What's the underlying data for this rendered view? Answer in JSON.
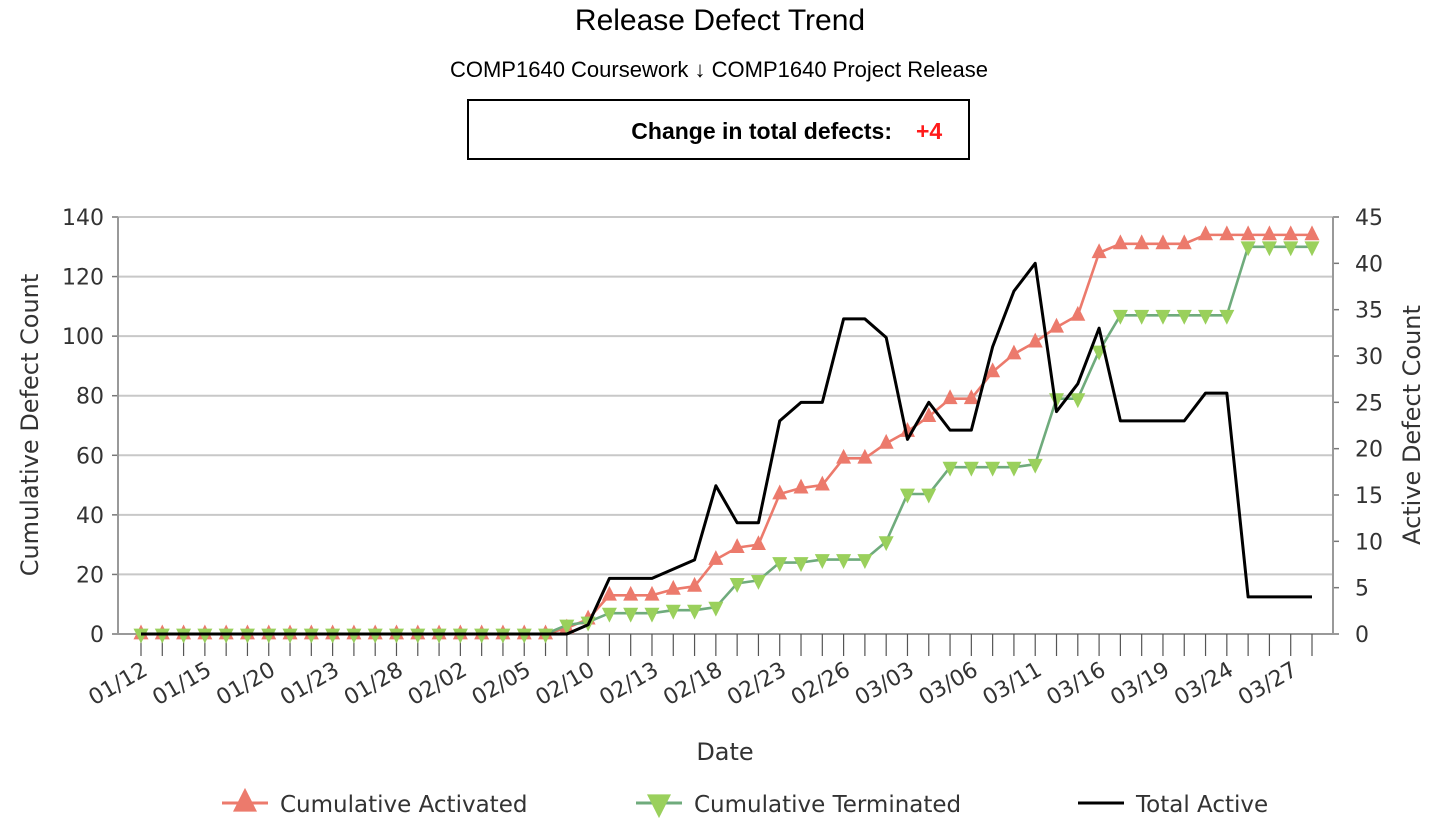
{
  "header": {
    "title": "Release Defect Trend",
    "subtitle": "COMP1640 Coursework ↓ COMP1640 Project Release",
    "change_label": "Change in total defects:",
    "change_value": "+4"
  },
  "chart_data": {
    "type": "line",
    "title": "Release Defect Trend",
    "subtitle": "COMP1640 Coursework ↓ COMP1640 Project Release",
    "xlabel": "Date",
    "ylabel": "Cumulative Defect Count",
    "ylabel_right": "Active Defect Count",
    "ylim": [
      0,
      140
    ],
    "ylim_right": [
      0,
      45
    ],
    "yticks": [
      0,
      20,
      40,
      60,
      80,
      100,
      120,
      140
    ],
    "yticks_right": [
      0,
      5,
      10,
      15,
      20,
      25,
      30,
      35,
      40,
      45
    ],
    "grid": true,
    "legend_position": "bottom",
    "x_tick_labels": [
      "01/12",
      "01/15",
      "01/20",
      "01/23",
      "01/28",
      "02/02",
      "02/05",
      "02/10",
      "02/13",
      "02/18",
      "02/23",
      "02/26",
      "03/03",
      "03/06",
      "03/11",
      "03/16",
      "03/19",
      "03/24",
      "03/27"
    ],
    "x_tick_every": 3,
    "point_count": 56,
    "series": [
      {
        "name": "Cumulative Activated",
        "axis": "left",
        "color": "#ec7a6c",
        "marker": "triangle-up",
        "values": [
          0,
          0,
          0,
          0,
          0,
          0,
          0,
          0,
          0,
          0,
          0,
          0,
          0,
          0,
          0,
          0,
          0,
          0,
          0,
          0,
          2,
          5,
          13,
          13,
          13,
          15,
          16,
          25,
          29,
          30,
          47,
          49,
          50,
          59,
          59,
          64,
          68,
          73,
          79,
          79,
          88,
          94,
          98,
          103,
          107,
          128,
          131,
          131,
          131,
          131,
          134,
          134,
          134,
          134,
          134,
          134
        ]
      },
      {
        "name": "Cumulative Terminated",
        "axis": "left",
        "color": "#6fab7c",
        "marker_color": "#9ad05c",
        "marker": "triangle-down",
        "values": [
          0,
          0,
          0,
          0,
          0,
          0,
          0,
          0,
          0,
          0,
          0,
          0,
          0,
          0,
          0,
          0,
          0,
          0,
          0,
          0,
          3,
          4,
          7,
          7,
          7,
          8,
          8,
          9,
          17,
          18,
          24,
          24,
          25,
          25,
          25,
          31,
          47,
          47,
          56,
          56,
          56,
          56,
          57,
          79,
          79,
          95,
          107,
          107,
          107,
          107,
          107,
          107,
          130,
          130,
          130,
          130
        ]
      },
      {
        "name": "Total Active",
        "axis": "right",
        "color": "#000000",
        "marker": "none",
        "values": [
          0,
          0,
          0,
          0,
          0,
          0,
          0,
          0,
          0,
          0,
          0,
          0,
          0,
          0,
          0,
          0,
          0,
          0,
          0,
          0,
          0,
          1,
          6,
          6,
          6,
          7,
          8,
          16,
          12,
          12,
          23,
          25,
          25,
          34,
          34,
          32,
          21,
          25,
          22,
          22,
          31,
          37,
          40,
          24,
          27,
          33,
          23,
          23,
          23,
          23,
          26,
          26,
          4,
          4,
          4,
          4
        ]
      }
    ]
  }
}
